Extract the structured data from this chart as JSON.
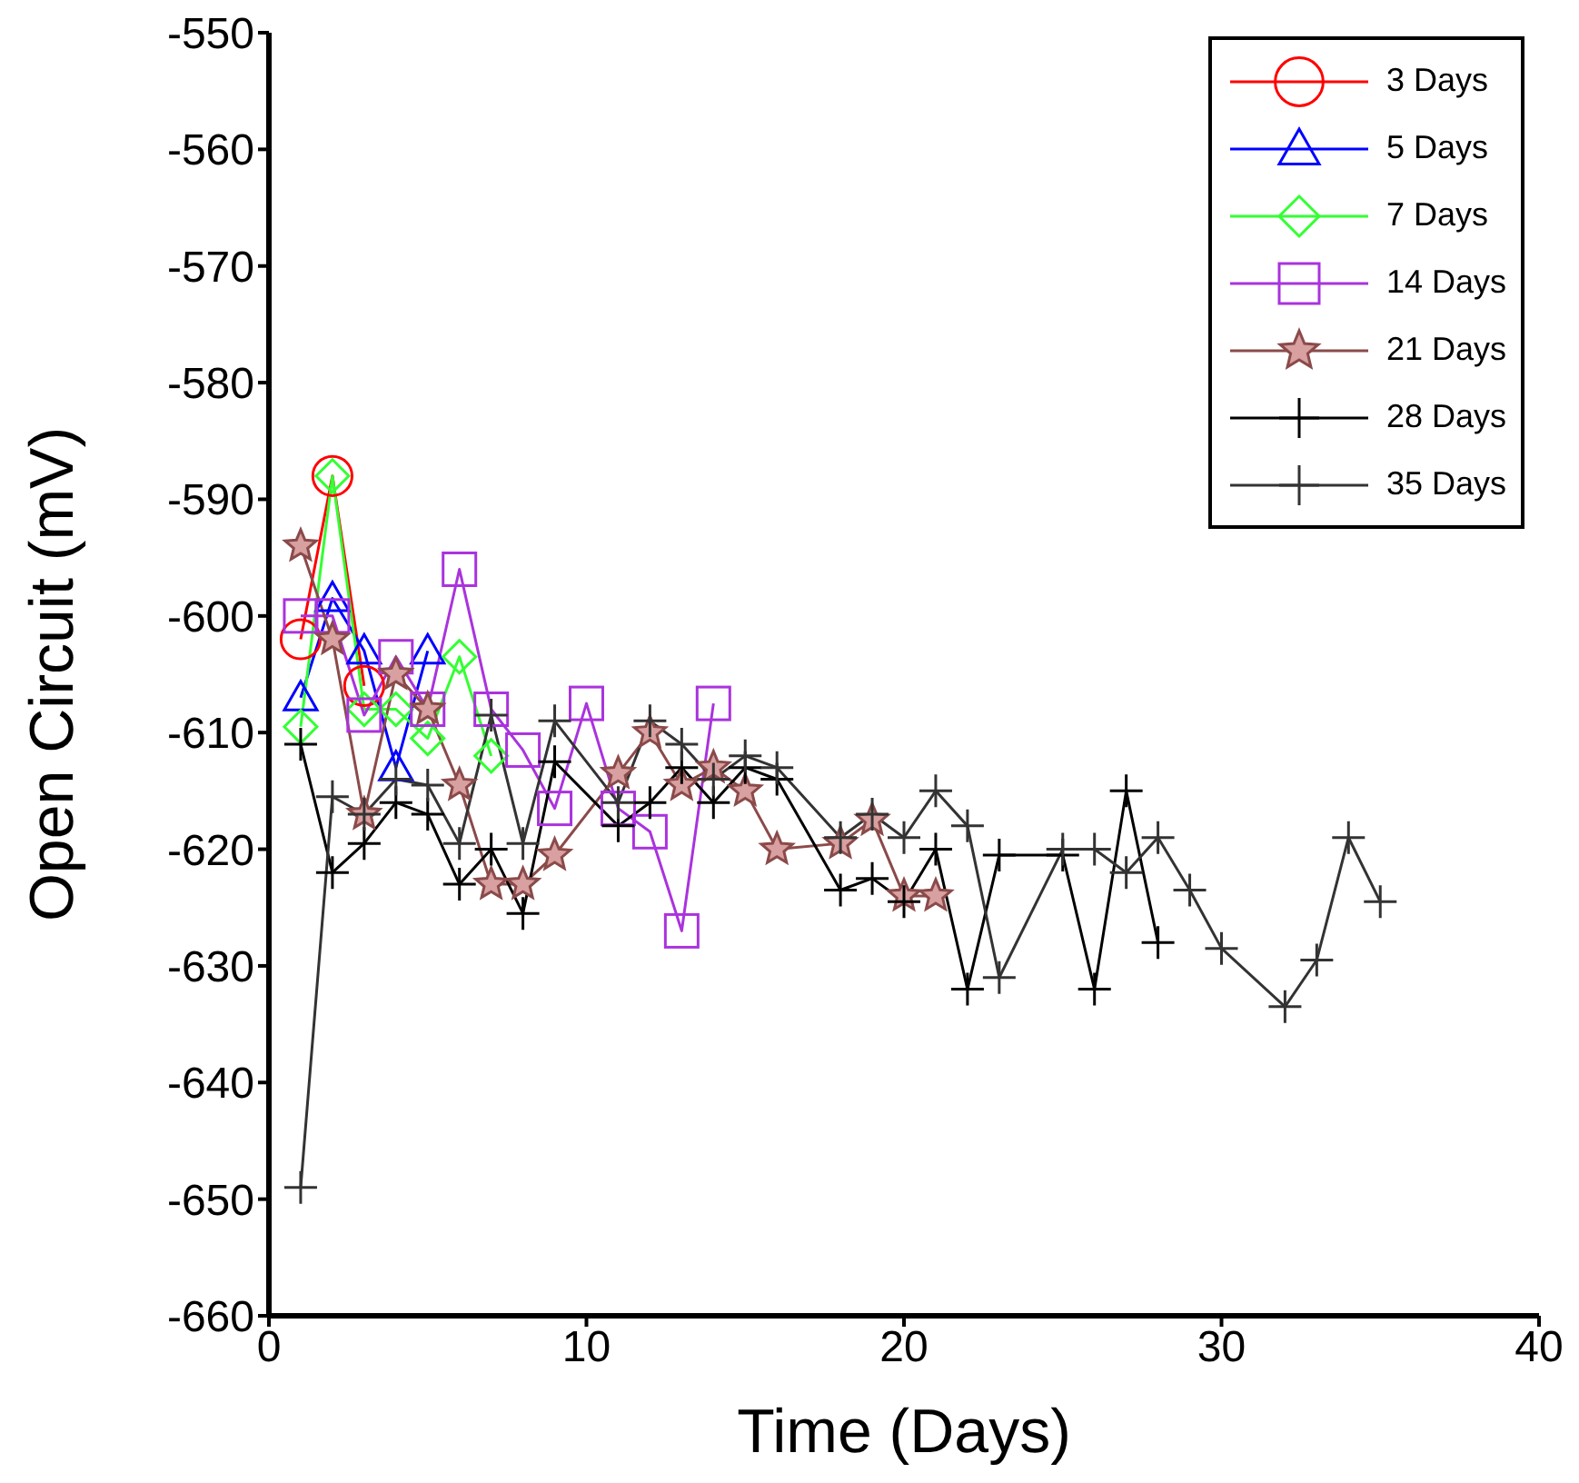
{
  "chart_data": {
    "type": "line",
    "xlabel": "Time (Days)",
    "ylabel": "Open Circuit (mV)",
    "xlim": [
      0,
      40
    ],
    "xticks": [
      0,
      10,
      20,
      30,
      40
    ],
    "ylim": [
      -660,
      -550
    ],
    "yticks": [
      -660,
      -650,
      -640,
      -630,
      -620,
      -610,
      -600,
      -590,
      -580,
      -570,
      -560,
      -550
    ],
    "grid": false,
    "legend": "top right",
    "line_style": "solid",
    "series": [
      {
        "name": "3 Days",
        "color": "#ff0000",
        "marker": "circle",
        "x": [
          1,
          2,
          3
        ],
        "values": [
          -602,
          -588,
          -606
        ]
      },
      {
        "name": "5 Days",
        "color": "#0000ff",
        "marker": "triangle",
        "x": [
          1,
          2,
          3,
          4,
          5
        ],
        "values": [
          -607,
          -598.5,
          -603,
          -613,
          -603
        ]
      },
      {
        "name": "7 Days",
        "color": "#33ff33",
        "marker": "diamond",
        "x": [
          1,
          2,
          3,
          4,
          5,
          6,
          7
        ],
        "values": [
          -609.5,
          -588,
          -608,
          -608,
          -610.5,
          -603.5,
          -612
        ]
      },
      {
        "name": "14 Days",
        "color": "#aa33dd",
        "marker": "square",
        "x": [
          1,
          2,
          3,
          4,
          5,
          6,
          7,
          8,
          9,
          10,
          11,
          12,
          13,
          14
        ],
        "values": [
          -600,
          -600,
          -608.5,
          -603.5,
          -608,
          -596,
          -608,
          -611.5,
          -616.5,
          -607.5,
          -616.5,
          -618.5,
          -627,
          -607.5
        ]
      },
      {
        "name": "21 Days",
        "color": "#8b4a4a",
        "marker": "star",
        "x": [
          1,
          2,
          3,
          4,
          5,
          6,
          7,
          8,
          9,
          11,
          12,
          13,
          14,
          15,
          16,
          18,
          19,
          20,
          21
        ],
        "values": [
          -594,
          -602,
          -617,
          -605,
          -608,
          -614.5,
          -623,
          -623,
          -620.5,
          -613.5,
          -610,
          -614.5,
          -613,
          -615,
          -620,
          -619.5,
          -617.5,
          -624,
          -624
        ]
      },
      {
        "name": "28 Days",
        "color": "#000000",
        "marker": "cross",
        "x": [
          1,
          2,
          3,
          4,
          5,
          6,
          7,
          8,
          9,
          11,
          12,
          13,
          14,
          15,
          16,
          18,
          19,
          20,
          21,
          22,
          23,
          25,
          26,
          27,
          28
        ],
        "values": [
          -611,
          -622,
          -619.5,
          -616,
          -617,
          -623,
          -620,
          -625.5,
          -612.5,
          -618,
          -616,
          -613,
          -616,
          -613,
          -614,
          -623.5,
          -622.5,
          -624.5,
          -620,
          -632,
          -620.5,
          -620.5,
          -632,
          -615,
          -628
        ]
      },
      {
        "name": "35 Days",
        "color": "#333333",
        "marker": "cross",
        "x": [
          1,
          2,
          3,
          4,
          5,
          6,
          7,
          8,
          9,
          11,
          12,
          13,
          14,
          15,
          16,
          18,
          19,
          20,
          21,
          22,
          23,
          25,
          26,
          27,
          28,
          29,
          30,
          32,
          33,
          34,
          35
        ],
        "values": [
          -649,
          -615.5,
          -617,
          -614,
          -614.5,
          -619.5,
          -608.5,
          -619.5,
          -609,
          -616,
          -609,
          -611,
          -614,
          -612,
          -613,
          -619,
          -617,
          -619,
          -615,
          -618,
          -631,
          -620,
          -620,
          -622,
          -619,
          -623.5,
          -628.5,
          -633.5,
          -629.5,
          -619,
          -624.5
        ]
      }
    ]
  }
}
